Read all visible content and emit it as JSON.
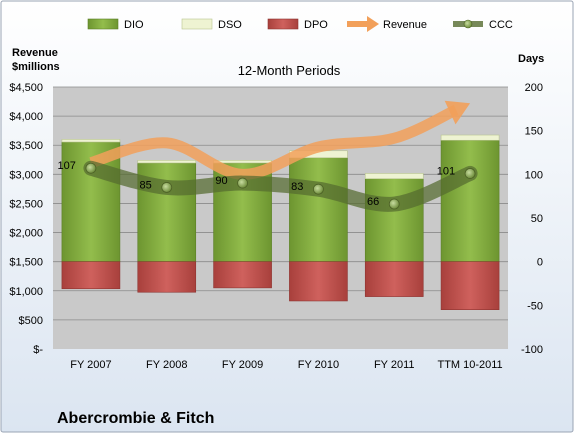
{
  "company": "Abercrombie & Fitch",
  "colors": {
    "dio": "#7faa3b",
    "dso": "#eef3d2",
    "dpo": "#c0504d",
    "revenue": "#f2a05a",
    "ccc": "#556b2f"
  },
  "chart_data": {
    "type": "bar",
    "title": "12-Month Periods",
    "categories": [
      "FY 2007",
      "FY 2008",
      "FY 2009",
      "FY 2010",
      "FY 2011",
      "TTM 10-2011"
    ],
    "legend": [
      "DIO",
      "DSO",
      "DPO",
      "Revenue",
      "CCC"
    ],
    "legend_position": "top",
    "grid": true,
    "left_axis": {
      "title_line1": "Revenue",
      "title_line2": "$millions",
      "range": [
        0,
        4500
      ],
      "ticks": [
        "$4,500",
        "$4,000",
        "$3,500",
        "$3,000",
        "$2,500",
        "$2,000",
        "$1,500",
        "$1,000",
        "$500",
        "$-"
      ]
    },
    "right_axis": {
      "title": "Days",
      "range": [
        -100,
        200
      ],
      "ticks": [
        "200",
        "150",
        "100",
        "50",
        "0",
        "-50",
        "-100"
      ]
    },
    "series": [
      {
        "name": "DIO",
        "axis": "right",
        "values": [
          137,
          113,
          113,
          119,
          95,
          139
        ]
      },
      {
        "name": "DSO",
        "axis": "right",
        "values": [
          3,
          3,
          3,
          8,
          6,
          6
        ]
      },
      {
        "name": "DPO",
        "axis": "right",
        "values": [
          -31,
          -35,
          -30,
          -45,
          -40,
          -55
        ]
      },
      {
        "name": "Revenue",
        "axis": "left",
        "values": [
          3200,
          3540,
          3000,
          3470,
          3620,
          4220
        ]
      },
      {
        "name": "CCC",
        "axis": "right",
        "values": [
          107,
          85,
          90,
          83,
          66,
          101
        ]
      }
    ],
    "ccc_labels": [
      "107",
      "85",
      "90",
      "83",
      "66",
      "101"
    ]
  }
}
